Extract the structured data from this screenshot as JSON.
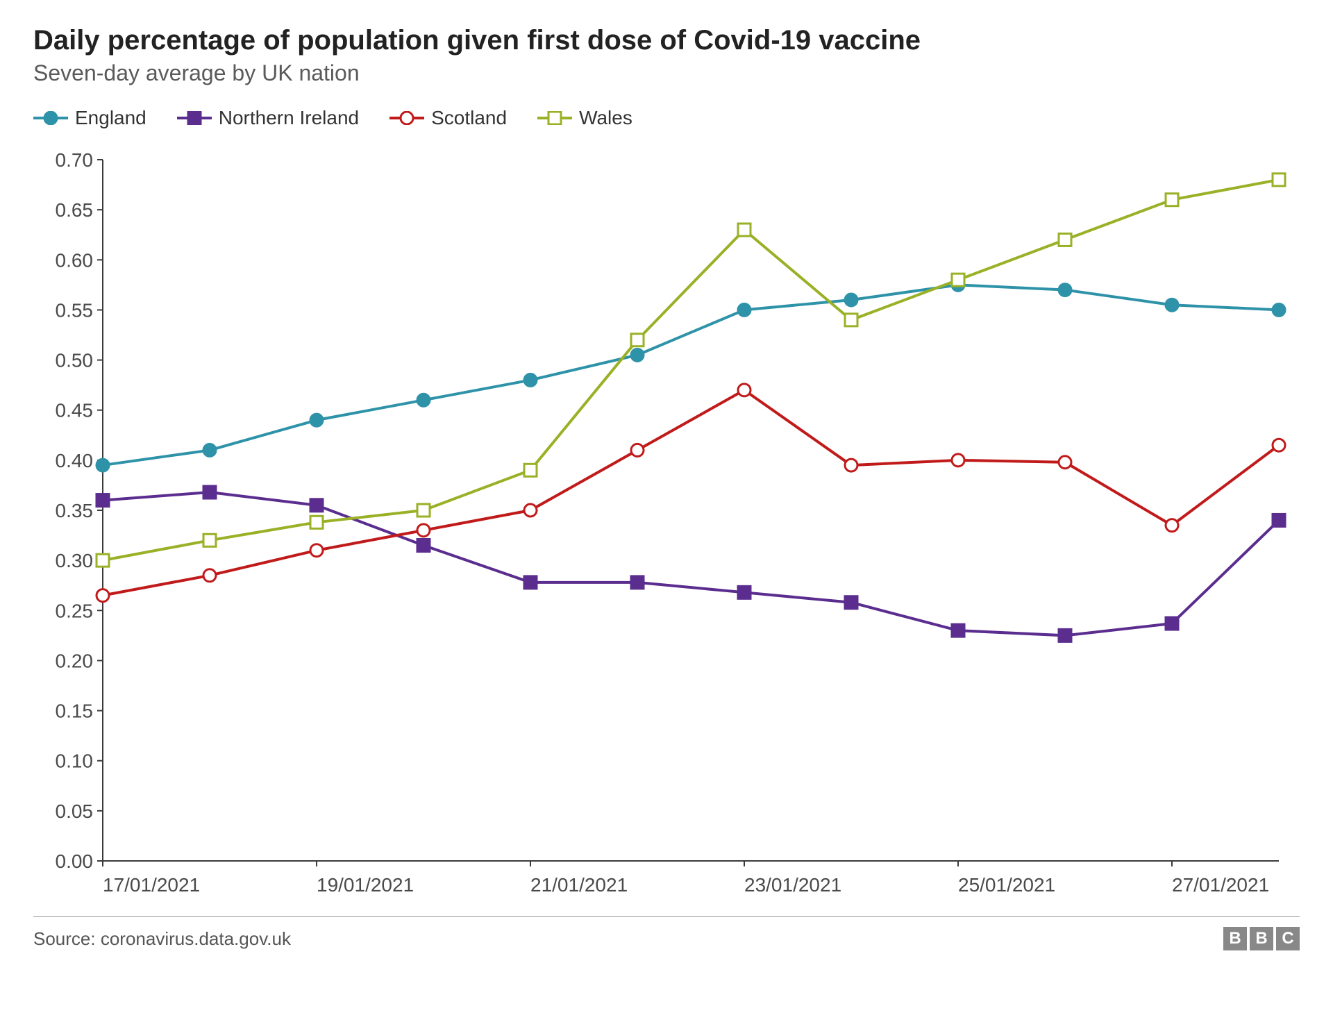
{
  "header": {
    "title": "Daily percentage of population given first dose of Covid-19 vaccine",
    "subtitle": "Seven-day average by UK nation"
  },
  "footer": {
    "source": "Source: coronavirus.data.gov.uk",
    "logo_letters": [
      "B",
      "B",
      "C"
    ]
  },
  "chart": {
    "type": "line",
    "background_color": "#ffffff",
    "grid_color": "#e0e0e0",
    "axis_color": "#3a3a3a",
    "axis_line_width": 2,
    "tick_font_size": 28,
    "tick_color": "#4a4a4a",
    "x": {
      "categories": [
        "17/01/2021",
        "18/01/2021",
        "19/01/2021",
        "20/01/2021",
        "21/01/2021",
        "22/01/2021",
        "23/01/2021",
        "24/01/2021",
        "25/01/2021",
        "26/01/2021",
        "27/01/2021",
        "28/01/2021"
      ],
      "tick_labels": [
        "17/01/2021",
        "19/01/2021",
        "21/01/2021",
        "23/01/2021",
        "25/01/2021",
        "27/01/2021"
      ],
      "tick_indices": [
        0,
        2,
        4,
        6,
        8,
        10
      ]
    },
    "y": {
      "min": 0.0,
      "max": 0.7,
      "step": 0.05,
      "ticks": [
        "0.00",
        "0.05",
        "0.10",
        "0.15",
        "0.20",
        "0.25",
        "0.30",
        "0.35",
        "0.40",
        "0.45",
        "0.50",
        "0.55",
        "0.60",
        "0.65",
        "0.70"
      ]
    },
    "series": [
      {
        "name": "England",
        "color": "#2e93a8",
        "marker": "circle",
        "marker_fill": "#2e93a8",
        "marker_stroke": "#2e93a8",
        "line_width": 4,
        "marker_size": 9,
        "values": [
          0.395,
          0.41,
          0.44,
          0.46,
          0.48,
          0.505,
          0.55,
          0.56,
          0.575,
          0.57,
          0.555,
          0.55
        ]
      },
      {
        "name": "Northern Ireland",
        "color": "#5a2d8f",
        "marker": "square",
        "marker_fill": "#5a2d8f",
        "marker_stroke": "#5a2d8f",
        "line_width": 4,
        "marker_size": 9,
        "values": [
          0.36,
          0.368,
          0.355,
          0.315,
          0.278,
          0.278,
          0.268,
          0.258,
          0.23,
          0.225,
          0.237,
          0.34
        ]
      },
      {
        "name": "Scotland",
        "color": "#c11a1a",
        "marker": "circle",
        "marker_fill": "#ffffff",
        "marker_stroke": "#c11a1a",
        "line_width": 4,
        "marker_size": 9,
        "values": [
          0.265,
          0.285,
          0.31,
          0.33,
          0.35,
          0.41,
          0.47,
          0.395,
          0.4,
          0.398,
          0.335,
          0.415
        ]
      },
      {
        "name": "Wales",
        "color": "#99b126",
        "marker": "square",
        "marker_fill": "#ffffff",
        "marker_stroke": "#99b126",
        "line_width": 4,
        "marker_size": 9,
        "values": [
          0.3,
          0.32,
          0.338,
          0.35,
          0.39,
          0.52,
          0.63,
          0.54,
          0.58,
          0.62,
          0.66,
          0.68
        ]
      }
    ],
    "legend_fontsize": 28
  }
}
